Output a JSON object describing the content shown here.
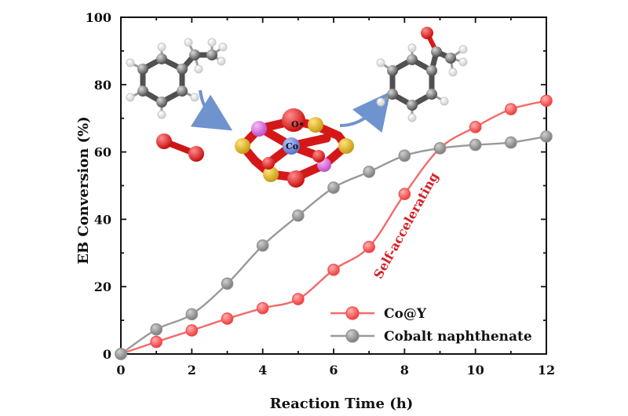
{
  "chart_data": {
    "type": "line",
    "title": "",
    "xlabel": "Reaction Time (h)",
    "ylabel": "EB Conversion (%)",
    "xlim": [
      0,
      12
    ],
    "ylim": [
      0,
      100
    ],
    "xticks": [
      0,
      2,
      4,
      6,
      8,
      10,
      12
    ],
    "yticks": [
      0,
      20,
      40,
      60,
      80,
      100
    ],
    "grid": false,
    "legend": {
      "placement": "bottom-right",
      "entries": [
        "Co@Y",
        "Cobalt naphthenate"
      ]
    },
    "series": [
      {
        "name": "Co@Y",
        "color": "#f04b4b",
        "line_color": "#f26b6b",
        "x": [
          0,
          1,
          2,
          3,
          4,
          5,
          6,
          7,
          8,
          9,
          10,
          11,
          12
        ],
        "y": [
          0,
          3.6,
          7.0,
          10.5,
          13.6,
          16.3,
          25.0,
          31.8,
          47.5,
          61.1,
          67.4,
          72.7,
          75.2
        ]
      },
      {
        "name": "Cobalt naphthenate",
        "color": "#8f8f8f",
        "line_color": "#999999",
        "x": [
          0,
          1,
          2,
          3,
          4,
          5,
          6,
          7,
          8,
          9,
          10,
          11,
          12
        ],
        "y": [
          0,
          7.3,
          11.8,
          20.9,
          32.2,
          41.1,
          49.4,
          54.1,
          58.9,
          61.1,
          62.1,
          62.8,
          64.6
        ]
      }
    ],
    "annotations": [
      {
        "text": "Self-accelerating",
        "color": "#d61f26"
      }
    ]
  },
  "inset": {
    "labels": {
      "oxygen_radical": "O•",
      "cobalt": "Co"
    },
    "colors": {
      "carbon": "#5f5f5f",
      "hydrogen": "#f2f2f2",
      "oxygen": "#d61a1a",
      "sulfur": "#d2ad2a",
      "pink": "#d46ed6",
      "cobalt": "#7087d8",
      "arrow": "#6f93cf"
    },
    "icons": [
      "ethylbenzene-molecule-icon",
      "catalyst-cluster-icon",
      "acetophenone-molecule-icon",
      "oxygen-molecule-icon",
      "reaction-arrow-icon"
    ]
  }
}
